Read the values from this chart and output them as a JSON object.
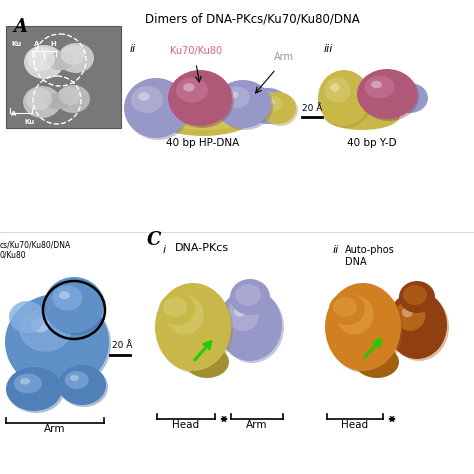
{
  "bg_color": "#ffffff",
  "title_panel_A": "Dimers of DNA-PKcs/Ku70/Ku80/DNA",
  "label_A": "A",
  "label_C": "C",
  "ku7080_label": "Ku70/Ku80",
  "ku7080_color": "#e06080",
  "arm_label": "Arm",
  "arm_label_color": "#999999",
  "dna_pkcs_label": "DNA-PKcs",
  "auto_phos_label": "Auto-phos\nDNA",
  "scale_bar_label": "20 Å",
  "caption_ii_top": "40 bp HP-DNA",
  "caption_iii_top": "40 bp Y-D",
  "head_label": "Head",
  "arm_bracket_label": "Arm",
  "color_yellow": "#c8b84a",
  "color_yellow_light": "#d8cc70",
  "color_yellow_dark": "#a09030",
  "color_lavender": "#9898c8",
  "color_lavender_light": "#b8b8d8",
  "color_lavender_dark": "#7070a8",
  "color_pink": "#b05878",
  "color_pink_light": "#c87898",
  "color_pink_dark": "#804060",
  "color_blue": "#6090c8",
  "color_blue_light": "#88b0e0",
  "color_blue_dark": "#3060a0",
  "color_blue_mid": "#5080b8",
  "color_orange": "#d08020",
  "color_orange_light": "#e0a040",
  "color_orange_dark": "#a06010",
  "color_grey_em": "#909090",
  "color_white": "#ffffff",
  "figure_width": 4.74,
  "figure_height": 4.74,
  "dpi": 100
}
